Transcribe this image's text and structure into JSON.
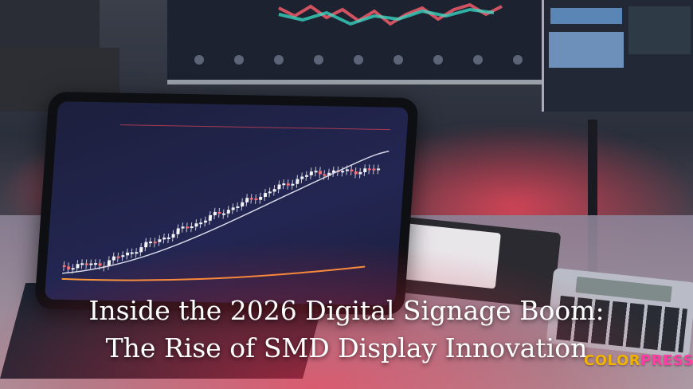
{
  "headline": {
    "line1": "Inside the 2026 Digital Signage Boom:",
    "line2": "The Rise of SMD Display Innovation"
  },
  "watermark": {
    "part1": "COLOR",
    "part2": "PRESS",
    "colors": {
      "part1": "#f0b400",
      "part2": "#ff3fa4"
    }
  },
  "scene": {
    "subject": "tablet-with-candlestick-chart",
    "accent_red": "#ff4a5e",
    "screen_bg": "#1d1f3d"
  }
}
